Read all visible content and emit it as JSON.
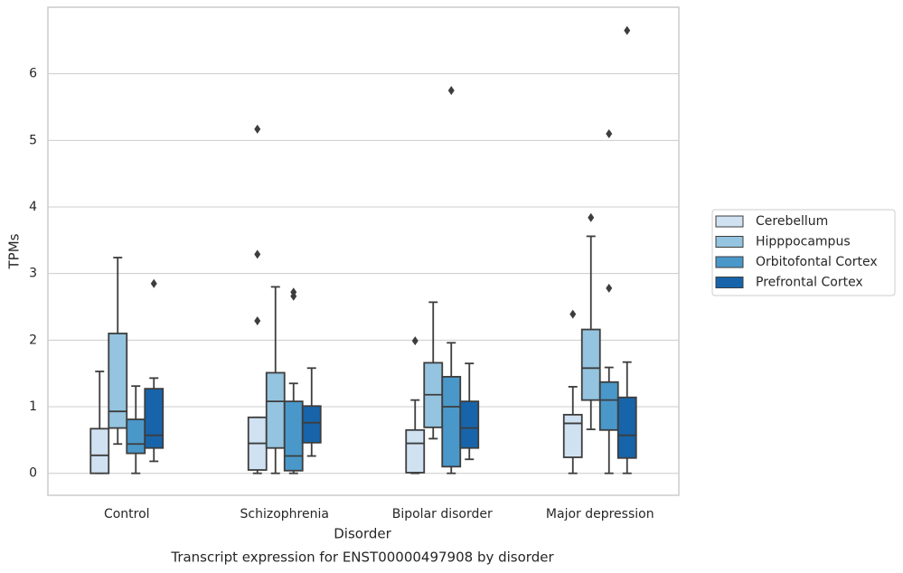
{
  "chart_data": {
    "type": "box",
    "xlabel": "Disorder",
    "ylabel": "TPMs",
    "caption": "Transcript expression for ENST00000497908 by disorder",
    "categories": [
      "Control",
      "Schizophrenia",
      "Bipolar disorder",
      "Major depression"
    ],
    "ylim": [
      -0.33,
      7.0
    ],
    "yticks": [
      0,
      1,
      2,
      3,
      4,
      5,
      6
    ],
    "grid": true,
    "legend": "right",
    "series": [
      {
        "name": "Cerebellum",
        "color": "#d0e1f2",
        "boxes": [
          {
            "low": 0,
            "q1": 0,
            "median": 0.27,
            "q3": 0.67,
            "high": 1.53,
            "outliers": []
          },
          {
            "low": 0,
            "q1": 0.05,
            "median": 0.45,
            "q3": 0.84,
            "high": 0.84,
            "outliers": [
              2.29,
              3.29,
              5.17
            ]
          },
          {
            "low": 0,
            "q1": 0.01,
            "median": 0.45,
            "q3": 0.65,
            "high": 1.1,
            "outliers": [
              1.99
            ]
          },
          {
            "low": 0,
            "q1": 0.24,
            "median": 0.75,
            "q3": 0.88,
            "high": 1.3,
            "outliers": [
              2.39
            ]
          }
        ]
      },
      {
        "name": "Hipppocampus",
        "color": "#94c4df",
        "boxes": [
          {
            "low": 0.44,
            "q1": 0.68,
            "median": 0.93,
            "q3": 2.1,
            "high": 3.24,
            "outliers": []
          },
          {
            "low": 0,
            "q1": 0.38,
            "median": 1.08,
            "q3": 1.51,
            "high": 2.8,
            "outliers": []
          },
          {
            "low": 0.52,
            "q1": 0.69,
            "median": 1.18,
            "q3": 1.66,
            "high": 2.57,
            "outliers": []
          },
          {
            "low": 0.66,
            "q1": 1.1,
            "median": 1.58,
            "q3": 2.16,
            "high": 3.56,
            "outliers": [
              3.84
            ]
          }
        ]
      },
      {
        "name": "Orbitofontal Cortex",
        "color": "#4a98c9",
        "boxes": [
          {
            "low": 0,
            "q1": 0.3,
            "median": 0.44,
            "q3": 0.81,
            "high": 1.31,
            "outliers": []
          },
          {
            "low": 0,
            "q1": 0.04,
            "median": 0.26,
            "q3": 1.08,
            "high": 1.35,
            "outliers": [
              2.66,
              2.72
            ]
          },
          {
            "low": 0,
            "q1": 0.1,
            "median": 1.0,
            "q3": 1.45,
            "high": 1.96,
            "outliers": [
              5.75
            ]
          },
          {
            "low": 0,
            "q1": 0.65,
            "median": 1.1,
            "q3": 1.37,
            "high": 1.59,
            "outliers": [
              2.78,
              5.1
            ]
          }
        ]
      },
      {
        "name": "Prefrontal Cortex",
        "color": "#1764ab",
        "boxes": [
          {
            "low": 0.18,
            "q1": 0.38,
            "median": 0.57,
            "q3": 1.27,
            "high": 1.43,
            "outliers": [
              2.85
            ]
          },
          {
            "low": 0.26,
            "q1": 0.46,
            "median": 0.76,
            "q3": 1.01,
            "high": 1.58,
            "outliers": []
          },
          {
            "low": 0.21,
            "q1": 0.38,
            "median": 0.68,
            "q3": 1.08,
            "high": 1.65,
            "outliers": []
          },
          {
            "low": 0,
            "q1": 0.23,
            "median": 0.57,
            "q3": 1.14,
            "high": 1.67,
            "outliers": [
              6.65
            ]
          }
        ]
      }
    ]
  }
}
